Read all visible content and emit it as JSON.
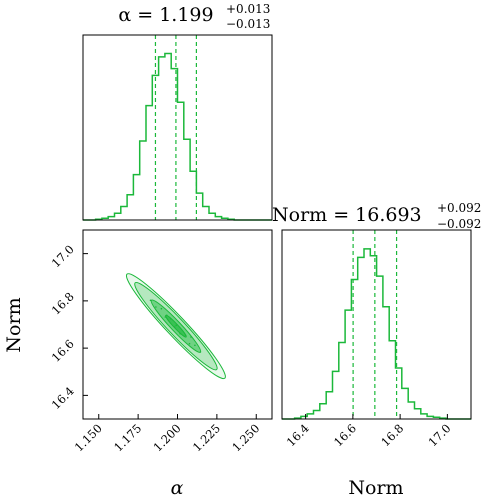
{
  "colors": {
    "series": "#1bb83a",
    "frame": "#000000"
  },
  "chart_data": [
    {
      "type": "histogram",
      "panel": "top-left",
      "parameter": "α",
      "title": {
        "base": "α = 1.199",
        "sup": "+0.013",
        "sub": "−0.013"
      },
      "xlim": [
        1.14,
        1.26
      ],
      "quantiles": [
        1.186,
        1.199,
        1.212
      ],
      "bin_edges_start": 1.14,
      "bin_width": 0.004,
      "counts": [
        0,
        0,
        0.5,
        1,
        2,
        4,
        8,
        15,
        27,
        47,
        68,
        86,
        97,
        99,
        90,
        70,
        48,
        29,
        16,
        8,
        4,
        2,
        1,
        0.5,
        0,
        0,
        0,
        0,
        0,
        0
      ]
    },
    {
      "type": "contour",
      "panel": "bottom-left",
      "xlabel": "α",
      "ylabel": "Norm",
      "xlim": [
        1.14,
        1.26
      ],
      "ylim": [
        16.3,
        17.1
      ],
      "xticks": [
        "1.150",
        "1.175",
        "1.200",
        "1.225",
        "1.250"
      ],
      "yticks": [
        "16.4",
        "16.6",
        "16.8",
        "17.0"
      ],
      "center": [
        1.199,
        16.693
      ],
      "sigma_x": 0.013,
      "sigma_y": 0.092,
      "rho": -0.985
    },
    {
      "type": "histogram",
      "panel": "bottom-right",
      "parameter": "Norm",
      "title": {
        "base": "Norm = 16.693",
        "sup": "+0.092",
        "sub": "−0.092"
      },
      "xlabel": "Norm",
      "xlim": [
        16.3,
        17.1
      ],
      "xticks": [
        "16.4",
        "16.6",
        "16.8",
        "17.0"
      ],
      "quantiles": [
        16.601,
        16.693,
        16.785
      ],
      "bin_edges_start": 16.3,
      "bin_width": 0.0267,
      "counts": [
        0,
        0,
        0.5,
        1.5,
        3,
        5,
        9,
        16,
        28,
        45,
        64,
        82,
        95,
        100,
        96,
        84,
        66,
        46,
        30,
        18,
        10,
        6,
        3,
        1.5,
        1,
        0.5,
        0,
        0,
        0,
        0
      ]
    }
  ]
}
